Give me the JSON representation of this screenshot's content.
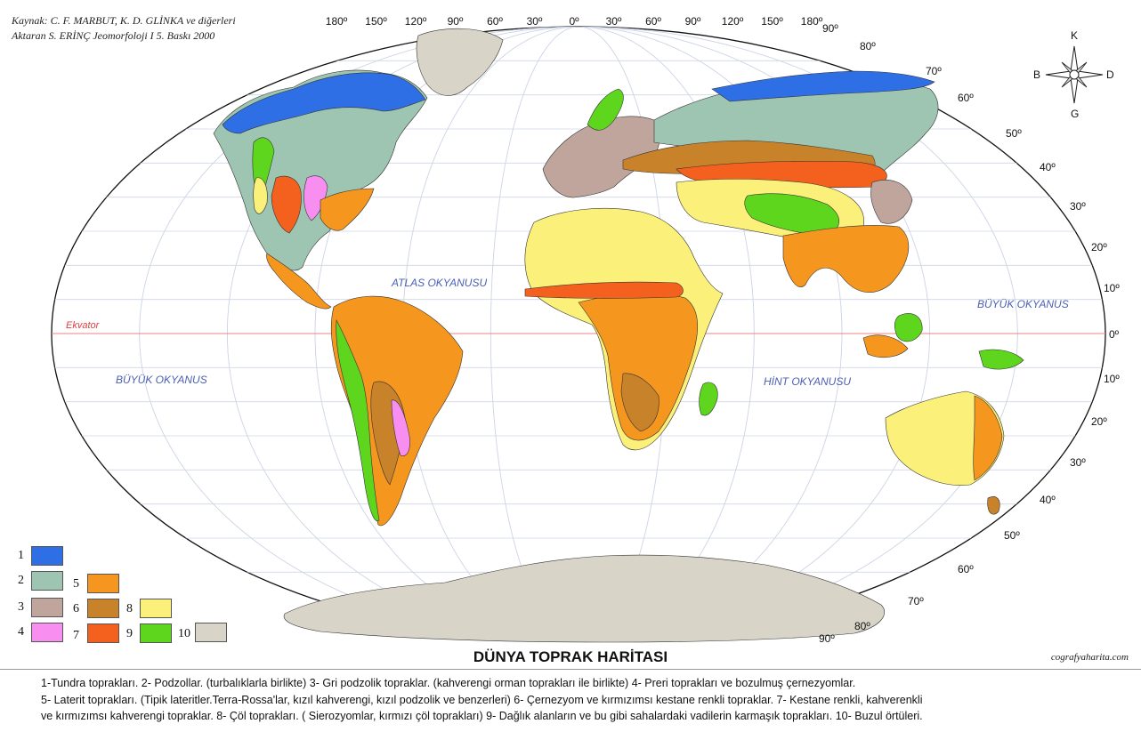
{
  "title": "DÜNYA TOPRAK HARİTASI",
  "source_line1": "Kaynak:  C. F. MARBUT, K. D. GLİNKA ve diğerleri",
  "source_line2": "Aktaran S. ERİNÇ Jeomorfoloji I 5. Baskı 2000",
  "website": "cografyaharita.com",
  "oceans": {
    "atlas": "ATLAS OKYANUSU",
    "pacific_east": "BÜYÜK OKYANUS",
    "pacific_west": "BÜYÜK OKYANUS",
    "indian": "HİNT OKYANUSU"
  },
  "equator_label": "Ekvator",
  "compass": {
    "n": "K",
    "s": "G",
    "e": "D",
    "w": "B"
  },
  "longitude_labels": [
    "180º",
    "150º",
    "120º",
    "90º",
    "60º",
    "30º",
    "0º",
    "30º",
    "60º",
    "90º",
    "120º",
    "150º",
    "180º"
  ],
  "latitude_labels_north": [
    "90º",
    "80º",
    "70º",
    "60º",
    "50º",
    "40º",
    "30º",
    "20º",
    "10º"
  ],
  "equator_degree": "0º",
  "latitude_labels_south": [
    "10º",
    "20º",
    "30º",
    "40º",
    "50º",
    "60º",
    "70º",
    "80º",
    "90º"
  ],
  "legend_swatches": [
    {
      "num": "1",
      "color": "#2f6fe6"
    },
    {
      "num": "2",
      "color": "#9ec4b2"
    },
    {
      "num": "3",
      "color": "#bfa59c"
    },
    {
      "num": "4",
      "color": "#f88ef0"
    },
    {
      "num": "5",
      "color": "#f5961e"
    },
    {
      "num": "6",
      "color": "#c8822a"
    },
    {
      "num": "7",
      "color": "#f4601e"
    },
    {
      "num": "8",
      "color": "#faf07a"
    },
    {
      "num": "9",
      "color": "#5ed61e"
    },
    {
      "num": "10",
      "color": "#d8d5c8"
    }
  ],
  "legend_lines": [
    "1-Tundra toprakları. 2- Podzollar. (turbalıklarla birlikte) 3- Gri podzolik topraklar. (kahverengi orman toprakları ile birlikte) 4- Preri toprakları ve bozulmuş çernezyomlar.",
    "5- Laterit toprakları. (Tipik lateritler.Terra-Rossa'lar, kızıl kahverengi, kızıl podzolik ve benzerleri) 6- Çernezyom ve kırmızımsı kestane renkli topraklar. 7- Kestane renkli, kahverenkli",
    "ve kırmızımsı kahverengi topraklar. 8- Çöl toprakları. ( Sierozyomlar, kırmızı çöl toprakları) 9- Dağlık alanların ve bu gibi sahalardaki vadilerin karmaşık toprakları. 10- Buzul örtüleri."
  ]
}
